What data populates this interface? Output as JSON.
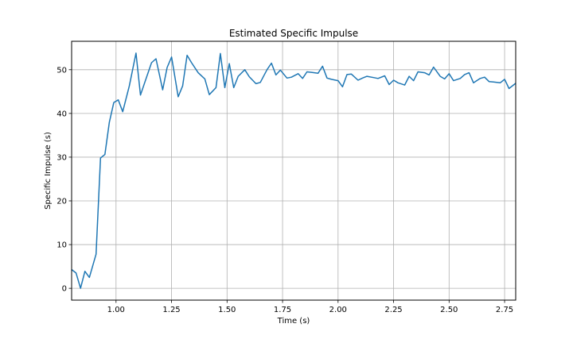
{
  "chart_data": {
    "type": "line",
    "title": "Estimated Specific Impulse",
    "xlabel": "Time (s)",
    "ylabel": "Specific Impulse (s)",
    "xlim": [
      0.8,
      2.8
    ],
    "ylim": [
      -2.7,
      56.5
    ],
    "grid": true,
    "xticks": [
      1.0,
      1.25,
      1.5,
      1.75,
      2.0,
      2.25,
      2.5,
      2.75
    ],
    "xtick_labels": [
      "1.00",
      "1.25",
      "1.50",
      "1.75",
      "2.00",
      "2.25",
      "2.50",
      "2.75"
    ],
    "yticks": [
      0,
      10,
      20,
      30,
      40,
      50
    ],
    "ytick_labels": [
      "0",
      "10",
      "20",
      "30",
      "40",
      "50"
    ],
    "line_color": "#1f77b4",
    "series": [
      {
        "x": [
          0.8,
          0.82,
          0.84,
          0.86,
          0.88,
          0.91,
          0.93,
          0.95,
          0.97,
          0.99,
          1.01,
          1.03,
          1.06,
          1.09,
          1.11,
          1.13,
          1.16,
          1.18,
          1.21,
          1.23,
          1.25,
          1.28,
          1.3,
          1.32,
          1.34,
          1.37,
          1.4,
          1.42,
          1.45,
          1.47,
          1.49,
          1.51,
          1.53,
          1.55,
          1.58,
          1.6,
          1.63,
          1.65,
          1.68,
          1.7,
          1.72,
          1.74,
          1.77,
          1.79,
          1.82,
          1.84,
          1.86,
          1.88,
          1.91,
          1.93,
          1.95,
          1.97,
          2.0,
          2.02,
          2.04,
          2.06,
          2.09,
          2.11,
          2.13,
          2.16,
          2.18,
          2.21,
          2.23,
          2.25,
          2.27,
          2.3,
          2.32,
          2.34,
          2.36,
          2.39,
          2.41,
          2.43,
          2.46,
          2.48,
          2.5,
          2.52,
          2.55,
          2.57,
          2.59,
          2.61,
          2.64,
          2.66,
          2.68,
          2.7,
          2.73,
          2.75,
          2.77,
          2.8
        ],
        "y": [
          4.3,
          3.5,
          0.0,
          3.9,
          2.5,
          7.8,
          29.8,
          30.6,
          38.0,
          42.5,
          43.1,
          40.4,
          46.3,
          53.8,
          44.2,
          47.2,
          51.6,
          52.5,
          45.4,
          50.5,
          52.9,
          43.8,
          46.3,
          53.3,
          51.6,
          49.3,
          47.9,
          44.3,
          45.9,
          53.7,
          45.9,
          51.4,
          45.9,
          48.5,
          50.0,
          48.4,
          46.8,
          47.1,
          50.0,
          51.5,
          48.8,
          49.9,
          48.1,
          48.3,
          49.1,
          48.0,
          49.5,
          49.4,
          49.2,
          50.8,
          48.1,
          47.8,
          47.5,
          46.1,
          48.9,
          49.0,
          47.6,
          48.1,
          48.5,
          48.2,
          48.0,
          48.6,
          46.6,
          47.6,
          47.0,
          46.5,
          48.5,
          47.5,
          49.5,
          49.3,
          48.8,
          50.6,
          48.5,
          47.9,
          49.1,
          47.5,
          48.0,
          48.9,
          49.3,
          47.0,
          48.0,
          48.3,
          47.3,
          47.2,
          47.0,
          47.8,
          45.7,
          46.9
        ]
      }
    ]
  }
}
